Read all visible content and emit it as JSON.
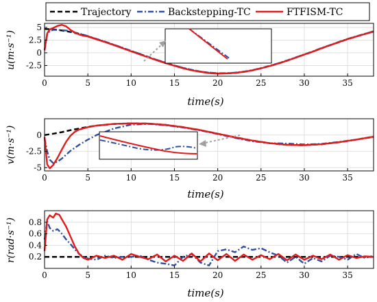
{
  "legend": {
    "entries": [
      {
        "label": "Trajectory",
        "color": "#000000",
        "dash": "dashed"
      },
      {
        "label": "Backstepping-TC",
        "color": "#2e4fa3",
        "dash": "dashdot"
      },
      {
        "label": "FTFISM-TC",
        "color": "#e31a1c",
        "dash": "solid"
      }
    ]
  },
  "chart_data": [
    {
      "type": "line",
      "xlabel": "time(s)",
      "ylabel": "u(m·s⁻¹)",
      "xlim": [
        0,
        38
      ],
      "ylim": [
        -4.6,
        5.8
      ],
      "xticks": [
        0,
        5,
        10,
        15,
        20,
        25,
        30,
        35
      ],
      "yticks": [
        -2.5,
        0,
        2.5,
        5
      ],
      "ytick_labels": [
        "-2.5",
        "0",
        "2.5",
        "5"
      ],
      "grid": true,
      "inset": true,
      "series": [
        {
          "name": "Trajectory",
          "x": [
            0,
            1,
            2,
            3,
            4,
            5,
            6,
            7,
            8,
            9,
            10,
            11,
            12,
            13,
            14,
            15,
            16,
            17,
            18,
            19,
            20,
            21,
            22,
            23,
            24,
            25,
            26,
            27,
            28,
            29,
            30,
            31,
            32,
            33,
            34,
            35,
            36,
            37,
            38
          ],
          "y": [
            4.7,
            4.6,
            4.4,
            4.1,
            3.7,
            3.25,
            2.7,
            2.15,
            1.55,
            0.95,
            0.35,
            -0.25,
            -0.85,
            -1.45,
            -2.0,
            -2.5,
            -3.0,
            -3.4,
            -3.7,
            -3.95,
            -4.05,
            -4.05,
            -3.95,
            -3.75,
            -3.45,
            -3.05,
            -2.6,
            -2.1,
            -1.55,
            -0.95,
            -0.35,
            0.25,
            0.9,
            1.5,
            2.1,
            2.7,
            3.2,
            3.7,
            4.2
          ]
        },
        {
          "name": "Backstepping-TC",
          "x": [
            0,
            0.3,
            0.6,
            1,
            1.5,
            2,
            2.5,
            3,
            3.5,
            4,
            5,
            6,
            7,
            8,
            9,
            10,
            11,
            12,
            13,
            14,
            15,
            16,
            17,
            18,
            19,
            20,
            21,
            22,
            23,
            24,
            25,
            26,
            27,
            28,
            29,
            30,
            31,
            32,
            33,
            34,
            35,
            36,
            37,
            38
          ],
          "y": [
            0.5,
            3.5,
            4.3,
            4.5,
            4.5,
            4.45,
            4.4,
            4.2,
            4.0,
            3.8,
            3.3,
            2.75,
            2.2,
            1.6,
            1.0,
            0.4,
            -0.2,
            -0.8,
            -1.4,
            -1.95,
            -2.5,
            -2.95,
            -3.35,
            -3.7,
            -3.9,
            -4.0,
            -4.0,
            -3.9,
            -3.7,
            -3.4,
            -3.0,
            -2.55,
            -2.05,
            -1.5,
            -0.9,
            -0.3,
            0.3,
            0.95,
            1.55,
            2.15,
            2.75,
            3.25,
            3.75,
            4.25
          ]
        },
        {
          "name": "FTFISM-TC",
          "x": [
            0,
            0.3,
            0.6,
            1,
            1.5,
            2,
            2.5,
            3,
            3.5,
            4,
            4.5,
            5,
            6,
            7,
            8,
            9,
            10,
            11,
            12,
            13,
            14,
            15,
            16,
            17,
            18,
            19,
            20,
            21,
            22,
            23,
            24,
            25,
            26,
            27,
            28,
            29,
            30,
            31,
            32,
            33,
            34,
            35,
            36,
            37,
            38
          ],
          "y": [
            0.5,
            3.8,
            4.6,
            4.9,
            5.3,
            5.5,
            5.2,
            4.5,
            4.0,
            3.6,
            3.35,
            3.2,
            2.65,
            2.1,
            1.5,
            0.9,
            0.3,
            -0.3,
            -0.9,
            -1.5,
            -2.05,
            -2.55,
            -3.05,
            -3.45,
            -3.75,
            -4.0,
            -4.1,
            -4.05,
            -3.95,
            -3.75,
            -3.45,
            -3.05,
            -2.6,
            -2.1,
            -1.55,
            -0.95,
            -0.35,
            0.25,
            0.9,
            1.5,
            2.1,
            2.7,
            3.2,
            3.7,
            4.15
          ]
        }
      ]
    },
    {
      "type": "line",
      "xlabel": "time(s)",
      "ylabel": "v(m·s⁻¹)",
      "xlim": [
        0,
        38
      ],
      "ylim": [
        -5.5,
        2.5
      ],
      "xticks": [
        0,
        5,
        10,
        15,
        20,
        25,
        30,
        35
      ],
      "yticks": [
        -5,
        -2.5,
        0
      ],
      "ytick_labels": [
        "-5",
        "-2.5",
        "0"
      ],
      "grid": true,
      "inset": true,
      "series": [
        {
          "name": "Trajectory",
          "x": [
            0,
            1,
            2,
            3,
            4,
            5,
            6,
            8,
            10,
            12,
            14,
            16,
            18,
            20,
            22,
            24,
            26,
            28,
            30,
            32,
            34,
            36,
            38
          ],
          "y": [
            0,
            0.2,
            0.45,
            0.75,
            1.0,
            1.25,
            1.45,
            1.7,
            1.8,
            1.75,
            1.55,
            1.2,
            0.75,
            0.2,
            -0.35,
            -0.85,
            -1.25,
            -1.5,
            -1.55,
            -1.4,
            -1.1,
            -0.7,
            -0.25
          ]
        },
        {
          "name": "Backstepping-TC",
          "x": [
            0,
            0.3,
            0.6,
            1,
            1.5,
            2,
            2.5,
            3,
            4,
            5,
            6,
            8,
            10,
            12,
            14,
            16,
            18,
            20,
            22,
            24,
            26,
            28,
            30,
            32,
            34,
            36,
            38
          ],
          "y": [
            -0.5,
            -2.5,
            -3.8,
            -4.3,
            -4.1,
            -3.6,
            -3.0,
            -2.4,
            -1.5,
            -0.7,
            0.0,
            1.0,
            1.6,
            1.7,
            1.5,
            1.15,
            0.7,
            0.15,
            -0.45,
            -0.95,
            -1.25,
            -1.3,
            -1.45,
            -1.35,
            -1.05,
            -0.7,
            -0.3
          ]
        },
        {
          "name": "FTFISM-TC",
          "x": [
            0,
            0.3,
            0.6,
            1,
            1.5,
            2,
            2.5,
            3,
            3.5,
            4,
            5,
            6,
            8,
            10,
            12,
            14,
            16,
            18,
            20,
            22,
            24,
            26,
            28,
            30,
            32,
            34,
            36,
            38
          ],
          "y": [
            -0.3,
            -4.5,
            -5.1,
            -4.6,
            -3.5,
            -2.2,
            -1.0,
            -0.1,
            0.5,
            0.85,
            1.2,
            1.45,
            1.7,
            1.8,
            1.75,
            1.55,
            1.2,
            0.75,
            0.2,
            -0.35,
            -0.85,
            -1.25,
            -1.5,
            -1.55,
            -1.4,
            -1.1,
            -0.7,
            -0.25
          ]
        }
      ]
    },
    {
      "type": "line",
      "xlabel": "time(s)",
      "ylabel": "r(rad·s⁻¹)",
      "xlim": [
        0,
        38
      ],
      "ylim": [
        0,
        1.0
      ],
      "xticks": [
        0,
        5,
        10,
        15,
        20,
        25,
        30,
        35
      ],
      "yticks": [
        0.2,
        0.4,
        0.6,
        0.8
      ],
      "ytick_labels": [
        "0.2",
        "0.4",
        "0.6",
        "0.8"
      ],
      "grid": true,
      "inset": false,
      "series": [
        {
          "name": "Trajectory",
          "x": [
            0,
            38
          ],
          "y": [
            0.2,
            0.2
          ]
        },
        {
          "name": "Backstepping-TC",
          "x": [
            0,
            0.3,
            0.6,
            1,
            1.5,
            2,
            2.5,
            3,
            3.5,
            4,
            4.5,
            5,
            6,
            7,
            8,
            9,
            10,
            11,
            12,
            13,
            14,
            15,
            16,
            17,
            18,
            19,
            20,
            21,
            22,
            23,
            24,
            25,
            26,
            27,
            28,
            29,
            30,
            31,
            32,
            33,
            34,
            35,
            36,
            37,
            38
          ],
          "y": [
            0.5,
            0.82,
            0.7,
            0.65,
            0.68,
            0.6,
            0.5,
            0.42,
            0.33,
            0.25,
            0.2,
            0.17,
            0.15,
            0.22,
            0.18,
            0.2,
            0.2,
            0.22,
            0.15,
            0.1,
            0.08,
            0.05,
            0.2,
            0.25,
            0.1,
            0.05,
            0.3,
            0.33,
            0.28,
            0.38,
            0.32,
            0.35,
            0.28,
            0.22,
            0.1,
            0.2,
            0.08,
            0.18,
            0.12,
            0.22,
            0.2,
            0.15,
            0.25,
            0.18,
            0.22
          ]
        },
        {
          "name": "FTFISM-TC",
          "x": [
            0,
            0.3,
            0.6,
            1,
            1.3,
            1.7,
            2,
            2.5,
            3,
            3.5,
            4,
            4.5,
            5,
            6,
            7,
            8,
            9,
            10,
            11,
            12,
            13,
            14,
            15,
            16,
            17,
            18,
            19,
            20,
            21,
            22,
            23,
            24,
            25,
            26,
            27,
            28,
            29,
            30,
            31,
            32,
            33,
            34,
            35,
            36,
            37,
            38
          ],
          "y": [
            0.3,
            0.85,
            0.92,
            0.88,
            0.95,
            0.93,
            0.85,
            0.72,
            0.55,
            0.38,
            0.25,
            0.18,
            0.15,
            0.22,
            0.18,
            0.22,
            0.15,
            0.25,
            0.2,
            0.16,
            0.24,
            0.12,
            0.22,
            0.13,
            0.26,
            0.12,
            0.26,
            0.14,
            0.25,
            0.13,
            0.24,
            0.15,
            0.23,
            0.16,
            0.25,
            0.14,
            0.24,
            0.15,
            0.22,
            0.16,
            0.24,
            0.15,
            0.23,
            0.18,
            0.21,
            0.2
          ]
        }
      ]
    }
  ]
}
